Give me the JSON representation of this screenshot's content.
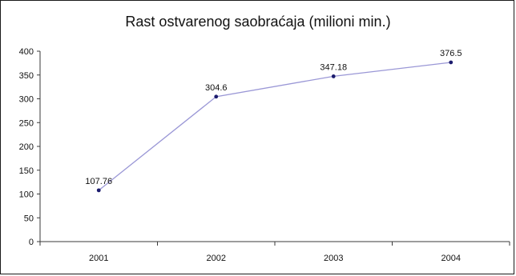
{
  "chart_data": {
    "type": "line",
    "title": "Rast ostvarenog saobraćaja (milioni min.)",
    "categories": [
      "2001",
      "2002",
      "2003",
      "2004"
    ],
    "series": [
      {
        "values": [
          107.76,
          304.6,
          347.18,
          376.5
        ],
        "labels": [
          "107.76",
          "304.6",
          "347.18",
          "376.5"
        ]
      }
    ],
    "ylim": [
      0,
      400
    ],
    "yticks": [
      "0",
      "50",
      "100",
      "150",
      "200",
      "250",
      "300",
      "350",
      "400"
    ],
    "grid": false,
    "legend": "none",
    "colors": {
      "line": "#9a97d6",
      "marker": "#1c1c6e",
      "axis": "#3a3a3a",
      "frame": "#1a1a1a"
    }
  }
}
